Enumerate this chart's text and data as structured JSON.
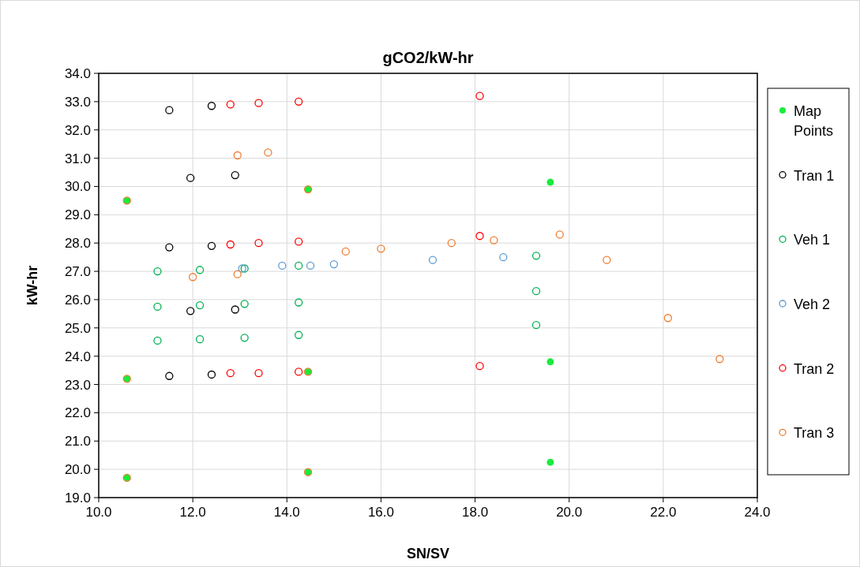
{
  "chart_data": {
    "type": "scatter",
    "title": "gCO2/kW-hr",
    "xlabel": "SN/SV",
    "ylabel": "kW-hr",
    "xlim": [
      10,
      24
    ],
    "xticks": [
      {
        "value": 10,
        "label": "10.0"
      },
      {
        "value": 12,
        "label": "12.0"
      },
      {
        "value": 14,
        "label": "14.0"
      },
      {
        "value": 16,
        "label": "16.0"
      },
      {
        "value": 18,
        "label": "18.0"
      },
      {
        "value": 20,
        "label": "20.0"
      },
      {
        "value": 22,
        "label": "22.0"
      },
      {
        "value": 24,
        "label": "24.0"
      }
    ],
    "ylim": [
      19,
      34
    ],
    "yticks": [
      {
        "value": 19,
        "label": "19.0"
      },
      {
        "value": 20,
        "label": "20.0"
      },
      {
        "value": 21,
        "label": "21.0"
      },
      {
        "value": 22,
        "label": "22.0"
      },
      {
        "value": 23,
        "label": "23.0"
      },
      {
        "value": 24,
        "label": "24.0"
      },
      {
        "value": 25,
        "label": "25.0"
      },
      {
        "value": 26,
        "label": "26.0"
      },
      {
        "value": 27,
        "label": "27.0"
      },
      {
        "value": 28,
        "label": "28.0"
      },
      {
        "value": 29,
        "label": "29.0"
      },
      {
        "value": 30,
        "label": "30.0"
      },
      {
        "value": 31,
        "label": "31.0"
      },
      {
        "value": 32,
        "label": "32.0"
      },
      {
        "value": 33,
        "label": "33.0"
      },
      {
        "value": 34,
        "label": "34.0"
      }
    ],
    "grid": true,
    "legend": "right",
    "marker": "circle",
    "series": [
      {
        "name": "Map Points",
        "color": "#1aeb3c",
        "x": [
          10.6,
          10.6,
          10.6,
          14.45,
          14.45,
          14.45,
          19.6,
          19.6,
          19.6
        ],
        "values": [
          29.5,
          23.2,
          19.7,
          29.9,
          23.45,
          19.9,
          30.15,
          23.8,
          20.25
        ]
      },
      {
        "name": "Tran 1",
        "color": "#000000",
        "x": [
          11.5,
          12.4,
          11.95,
          12.9,
          11.5,
          12.4,
          11.95,
          12.9,
          11.5,
          12.4
        ],
        "values": [
          32.7,
          32.85,
          30.3,
          30.4,
          27.85,
          27.9,
          25.6,
          25.65,
          23.3,
          23.35
        ]
      },
      {
        "name": "Veh 1",
        "color": "#00b050",
        "x": [
          11.25,
          12.15,
          13.1,
          14.25,
          11.25,
          12.15,
          13.1,
          14.25,
          11.25,
          12.15,
          13.1,
          14.25,
          19.3,
          19.3,
          19.3
        ],
        "values": [
          27.0,
          27.05,
          27.1,
          27.2,
          25.75,
          25.8,
          25.85,
          25.9,
          24.55,
          24.6,
          24.65,
          24.75,
          27.55,
          26.3,
          25.1
        ]
      },
      {
        "name": "Veh 2",
        "color": "#5b9bd5",
        "x": [
          13.05,
          13.9,
          14.5,
          15.0,
          17.1,
          18.6
        ],
        "values": [
          27.1,
          27.2,
          27.2,
          27.25,
          27.4,
          27.5
        ]
      },
      {
        "name": "Tran 2",
        "color": "#ff0000",
        "x": [
          12.8,
          13.4,
          14.25,
          18.1,
          12.8,
          13.4,
          14.25,
          18.1,
          12.8,
          13.4,
          14.25,
          18.1
        ],
        "values": [
          32.9,
          32.95,
          33.0,
          33.2,
          27.95,
          28.0,
          28.05,
          28.25,
          23.4,
          23.4,
          23.45,
          23.65
        ]
      },
      {
        "name": "Tran 3",
        "color": "#ed7d31",
        "x": [
          10.6,
          10.6,
          10.6,
          14.45,
          14.45,
          14.45,
          12.95,
          13.6,
          12.0,
          12.95,
          15.25,
          16.0,
          17.5,
          18.4,
          19.8,
          20.8,
          22.1,
          23.2
        ],
        "values": [
          29.5,
          23.2,
          19.7,
          29.9,
          23.45,
          19.9,
          31.1,
          31.2,
          26.8,
          26.9,
          27.7,
          27.8,
          28.0,
          28.1,
          28.3,
          27.4,
          25.35,
          23.9
        ]
      }
    ]
  }
}
